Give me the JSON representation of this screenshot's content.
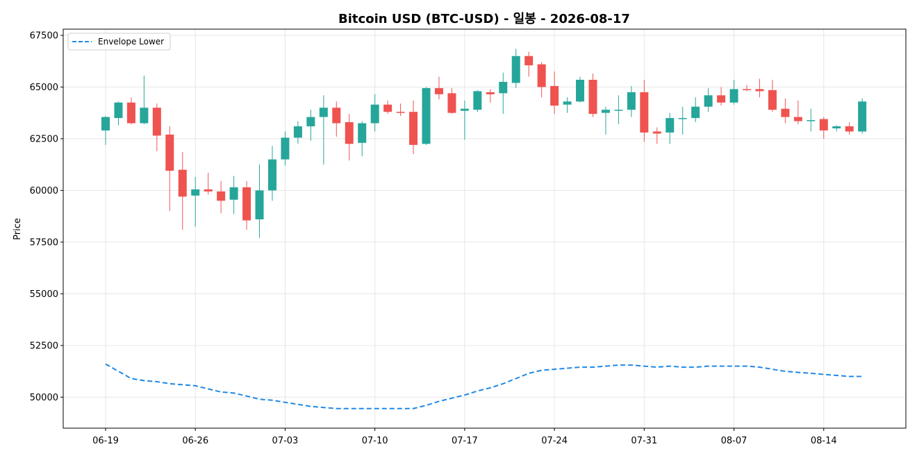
{
  "chart_data": {
    "type": "candlestick",
    "title": "Bitcoin USD (BTC-USD) - 일봉 - 2026-08-17",
    "ylabel": "Price",
    "xlabel": "",
    "ylim": [
      48500,
      67800
    ],
    "yticks": [
      50000,
      52500,
      55000,
      57500,
      60000,
      62500,
      65000,
      67500
    ],
    "xtick_labels": [
      "06-19",
      "06-26",
      "07-03",
      "07-10",
      "07-17",
      "07-24",
      "07-31",
      "08-07",
      "08-14"
    ],
    "grid": true,
    "legend": {
      "position": "top-left",
      "entries": [
        "Envelope Lower"
      ]
    },
    "colors": {
      "up": "#26a69a",
      "down": "#ef5350",
      "envelope": "#1e88e5"
    },
    "dates": [
      "06-19",
      "06-20",
      "06-21",
      "06-22",
      "06-23",
      "06-24",
      "06-25",
      "06-26",
      "06-27",
      "06-28",
      "06-29",
      "06-30",
      "07-01",
      "07-02",
      "07-03",
      "07-04",
      "07-05",
      "07-06",
      "07-07",
      "07-08",
      "07-09",
      "07-10",
      "07-11",
      "07-12",
      "07-13",
      "07-14",
      "07-15",
      "07-16",
      "07-17",
      "07-18",
      "07-19",
      "07-20",
      "07-21",
      "07-22",
      "07-23",
      "07-24",
      "07-25",
      "07-26",
      "07-27",
      "07-28",
      "07-29",
      "07-30",
      "07-31",
      "08-01",
      "08-02",
      "08-03",
      "08-04",
      "08-05",
      "08-06",
      "08-07",
      "08-08",
      "08-09",
      "08-10",
      "08-11",
      "08-12",
      "08-13",
      "08-14",
      "08-15",
      "08-16",
      "08-17"
    ],
    "open": [
      62900,
      63500,
      64250,
      63250,
      64000,
      62700,
      61000,
      59750,
      60050,
      59950,
      59550,
      60150,
      58600,
      60000,
      61500,
      62550,
      63100,
      63550,
      64000,
      63300,
      62300,
      63250,
      64150,
      63800,
      63800,
      62250,
      64950,
      64700,
      63850,
      63900,
      64750,
      64700,
      65200,
      66500,
      66100,
      65050,
      64150,
      64300,
      65350,
      63750,
      63900,
      63900,
      64750,
      62850,
      62800,
      63500,
      63500,
      64050,
      64600,
      64250,
      64900,
      64900,
      64850,
      63950,
      63550,
      63400,
      63450,
      63000,
      63100,
      62850
    ],
    "high": [
      63600,
      64300,
      64500,
      65550,
      64200,
      63100,
      61850,
      60650,
      60850,
      60450,
      60700,
      60450,
      61250,
      62150,
      62850,
      63350,
      63900,
      64600,
      64300,
      63700,
      63350,
      64650,
      64350,
      64200,
      64350,
      65000,
      65500,
      64950,
      64350,
      64850,
      64900,
      65700,
      66850,
      66700,
      66200,
      65750,
      64500,
      65500,
      65650,
      64050,
      64600,
      65050,
      65350,
      63050,
      63750,
      64050,
      64500,
      64950,
      65000,
      65350,
      65100,
      65400,
      65350,
      64450,
      64350,
      63950,
      63550,
      63150,
      63300,
      64450
    ],
    "low": [
      62200,
      63150,
      63200,
      63200,
      61900,
      59000,
      58100,
      58250,
      59800,
      58900,
      58850,
      58100,
      57700,
      59500,
      61200,
      62250,
      62400,
      61250,
      62600,
      61450,
      61650,
      62850,
      63700,
      63600,
      61750,
      62200,
      64400,
      63700,
      62450,
      63800,
      64250,
      63700,
      64950,
      65500,
      64500,
      63700,
      63750,
      64250,
      63550,
      62700,
      63200,
      63550,
      62350,
      62250,
      62250,
      62700,
      63300,
      63800,
      64100,
      64150,
      64800,
      64500,
      63800,
      63250,
      63200,
      62850,
      62500,
      62850,
      62700,
      62750
    ],
    "close": [
      63550,
      64250,
      63250,
      64000,
      62650,
      60950,
      59700,
      60050,
      59950,
      59500,
      60150,
      58550,
      60000,
      61500,
      62550,
      63100,
      63550,
      64000,
      63250,
      62250,
      63250,
      64150,
      63800,
      63750,
      62200,
      64950,
      64650,
      63750,
      63950,
      64800,
      64650,
      65250,
      66500,
      66050,
      65000,
      64100,
      64300,
      65350,
      63700,
      63900,
      63900,
      64750,
      62800,
      62750,
      63500,
      63500,
      64050,
      64600,
      64250,
      64900,
      64850,
      64800,
      63900,
      63550,
      63350,
      63400,
      62900,
      63100,
      62850,
      64300
    ],
    "envelope_lower": [
      51600,
      51250,
      50900,
      50800,
      50750,
      50650,
      50600,
      50550,
      50400,
      50250,
      50200,
      50050,
      49900,
      49850,
      49750,
      49650,
      49550,
      49500,
      49450,
      49450,
      49450,
      49450,
      49450,
      49450,
      49450,
      49600,
      49800,
      49950,
      50100,
      50300,
      50450,
      50650,
      50900,
      51150,
      51300,
      51350,
      51400,
      51450,
      51450,
      51500,
      51550,
      51550,
      51500,
      51450,
      51500,
      51450,
      51450,
      51500,
      51500,
      51500,
      51500,
      51450,
      51350,
      51250,
      51200,
      51150,
      51100,
      51050,
      51000,
      51000
    ]
  }
}
